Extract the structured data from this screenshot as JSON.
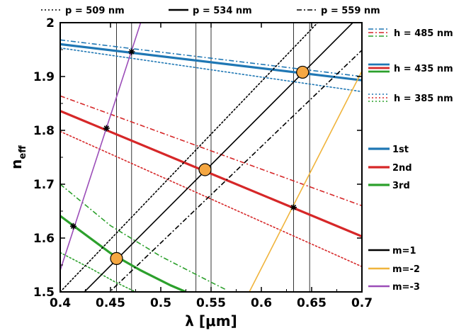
{
  "chart_data": {
    "type": "line",
    "xlabel": "λ [μm]",
    "ylabel": "n_eff",
    "xlim": [
      0.4,
      0.7
    ],
    "ylim": [
      1.5,
      2.0
    ],
    "x_ticks": [
      "0.4",
      "0.45",
      "0.5",
      "0.55",
      "0.6",
      "0.65",
      "0.7"
    ],
    "y_ticks": [
      "1.5",
      "1.6",
      "1.7",
      "1.8",
      "1.9",
      "2"
    ],
    "grid": false,
    "colors": {
      "order1": "#1f77b4",
      "order2": "#d62728",
      "order3": "#2ca02c",
      "m1": "#000000",
      "m_minus2": "#f0b43c",
      "m_minus3": "#9b4db8",
      "circle_fill": "#f5a742"
    },
    "top_legend": [
      {
        "label": "p = 509 nm",
        "dash": "dotted"
      },
      {
        "label": "p = 534 nm",
        "dash": "solid"
      },
      {
        "label": "p = 559 nm",
        "dash": "dashdot"
      }
    ],
    "height_legend": [
      {
        "label": "h = 485 nm",
        "dash": "dashdot"
      },
      {
        "label": "h = 435 nm",
        "dash": "solid"
      },
      {
        "label": "h = 385 nm",
        "dash": "dotted"
      }
    ],
    "order_legend": [
      {
        "label": "1st",
        "color": "#1f77b4"
      },
      {
        "label": "2nd",
        "color": "#d62728"
      },
      {
        "label": "3rd",
        "color": "#2ca02c"
      }
    ],
    "m_legend": [
      {
        "label": "m=1",
        "color": "#000000"
      },
      {
        "label": "m=-2",
        "color": "#f0b43c"
      },
      {
        "label": "m=-3",
        "color": "#9b4db8"
      }
    ],
    "series": [
      {
        "mode": "1st",
        "h": "485",
        "color": "#1f77b4",
        "dash": "dashdot",
        "width": 1.6,
        "x": [
          0.4,
          0.7
        ],
        "y": [
          1.968,
          1.9
        ]
      },
      {
        "mode": "1st",
        "h": "435",
        "color": "#1f77b4",
        "dash": "solid",
        "width": 3.2,
        "x": [
          0.4,
          0.7
        ],
        "y": [
          1.96,
          1.893
        ]
      },
      {
        "mode": "1st",
        "h": "385",
        "color": "#1f77b4",
        "dash": "dotted",
        "width": 1.6,
        "x": [
          0.4,
          0.7
        ],
        "y": [
          1.953,
          1.872
        ]
      },
      {
        "mode": "2nd",
        "h": "485",
        "color": "#d62728",
        "dash": "dashdot",
        "width": 1.6,
        "x": [
          0.4,
          0.7
        ],
        "y": [
          1.864,
          1.66
        ]
      },
      {
        "mode": "2nd",
        "h": "435",
        "color": "#d62728",
        "dash": "solid",
        "width": 3.2,
        "x": [
          0.4,
          0.7
        ],
        "y": [
          1.836,
          1.603
        ]
      },
      {
        "mode": "2nd",
        "h": "385",
        "color": "#d62728",
        "dash": "dotted",
        "width": 1.6,
        "x": [
          0.4,
          0.7
        ],
        "y": [
          1.798,
          1.547
        ]
      },
      {
        "mode": "3rd",
        "h": "485",
        "color": "#2ca02c",
        "dash": "dashdot",
        "width": 1.6,
        "x": [
          0.4,
          0.45,
          0.5,
          0.55,
          0.565
        ],
        "y": [
          1.7,
          1.623,
          1.566,
          1.518,
          1.504
        ]
      },
      {
        "mode": "3rd",
        "h": "435",
        "color": "#2ca02c",
        "dash": "solid",
        "width": 3.2,
        "x": [
          0.4,
          0.45,
          0.48,
          0.51,
          0.525
        ],
        "y": [
          1.641,
          1.572,
          1.54,
          1.512,
          1.5
        ]
      },
      {
        "mode": "3rd",
        "h": "385",
        "color": "#2ca02c",
        "dash": "dotted",
        "width": 1.6,
        "x": [
          0.4,
          0.43,
          0.455,
          0.475
        ],
        "y": [
          1.573,
          1.544,
          1.518,
          1.5
        ]
      },
      {
        "grating": "m=1",
        "p": "509",
        "color": "#000000",
        "dash": "dotted",
        "width": 1.6,
        "x": [
          0.4,
          0.7
        ],
        "y": [
          1.5,
          2.086
        ]
      },
      {
        "grating": "m=1",
        "p": "534",
        "color": "#000000",
        "dash": "solid",
        "width": 1.6,
        "x": [
          0.4,
          0.7
        ],
        "y": [
          1.455,
          2.017
        ]
      },
      {
        "grating": "m=1",
        "p": "559",
        "color": "#000000",
        "dash": "dashdot",
        "width": 1.6,
        "x": [
          0.4,
          0.7
        ],
        "y": [
          1.412,
          1.949
        ]
      },
      {
        "grating": "m=-2",
        "p": "534",
        "color": "#f0b43c",
        "dash": "solid",
        "width": 1.6,
        "x": [
          0.588,
          0.7
        ],
        "y": [
          1.5,
          1.91
        ]
      },
      {
        "grating": "m=-3",
        "p": "534",
        "color": "#9b4db8",
        "dash": "solid",
        "width": 1.6,
        "x": [
          0.4,
          0.48
        ],
        "y": [
          1.54,
          2.0
        ]
      }
    ],
    "vertical_lines_x": [
      0.456,
      0.471,
      0.535,
      0.55,
      0.632,
      0.648
    ],
    "circle_points": [
      {
        "x": 0.456,
        "y": 1.562
      },
      {
        "x": 0.544,
        "y": 1.727
      },
      {
        "x": 0.641,
        "y": 1.908
      }
    ],
    "star_points": [
      {
        "x": 0.413,
        "y": 1.622
      },
      {
        "x": 0.446,
        "y": 1.804
      },
      {
        "x": 0.471,
        "y": 1.946
      },
      {
        "x": 0.632,
        "y": 1.657
      },
      {
        "x": 0.638,
        "y": 1.905
      }
    ]
  }
}
